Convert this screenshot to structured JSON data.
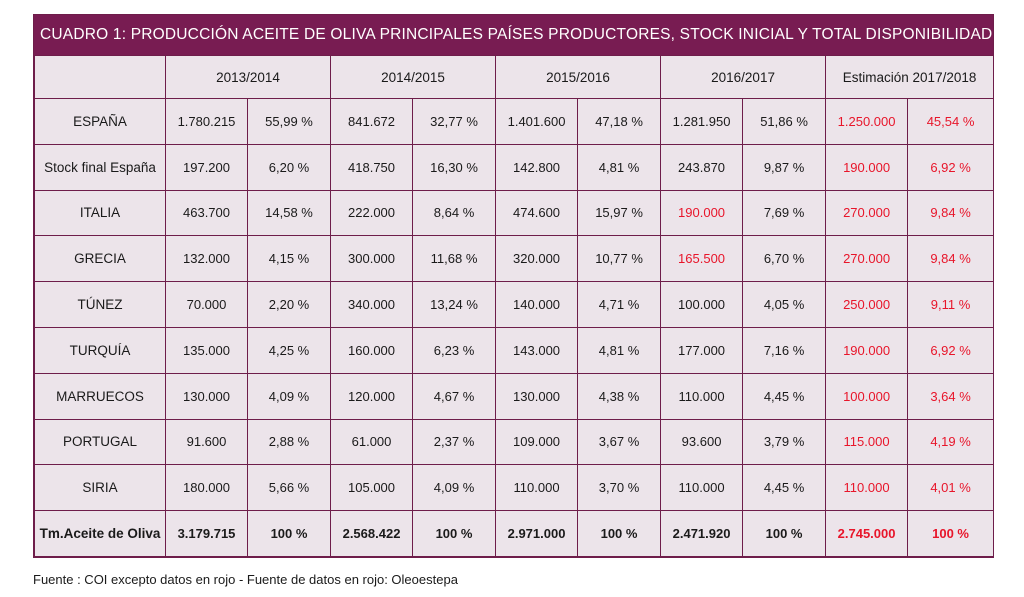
{
  "title": "CUADRO 1: PRODUCCIÓN ACEITE DE OLIVA PRINCIPALES PAÍSES PRODUCTORES, STOCK INICIAL Y TOTAL DISPONIBILIDADES",
  "colors": {
    "header_bg": "#781c52",
    "cell_bg": "#ece4ea",
    "border": "#6e1d4a",
    "highlight_text": "#e8152a"
  },
  "headers": [
    "2013/2014",
    "2014/2015",
    "2015/2016",
    "2016/2017",
    "Estimación 2017/2018"
  ],
  "rows": [
    {
      "label": "ESPAÑA",
      "cells": [
        {
          "v": "1.780.215",
          "red": false
        },
        {
          "v": "55,99 %",
          "red": false
        },
        {
          "v": "841.672",
          "red": false
        },
        {
          "v": "32,77 %",
          "red": false
        },
        {
          "v": "1.401.600",
          "red": false
        },
        {
          "v": "47,18 %",
          "red": false
        },
        {
          "v": "1.281.950",
          "red": false
        },
        {
          "v": "51,86 %",
          "red": false
        },
        {
          "v": "1.250.000",
          "red": true
        },
        {
          "v": "45,54 %",
          "red": true
        }
      ]
    },
    {
      "label": "Stock final España",
      "cells": [
        {
          "v": "197.200",
          "red": false
        },
        {
          "v": "6,20 %",
          "red": false
        },
        {
          "v": "418.750",
          "red": false
        },
        {
          "v": "16,30 %",
          "red": false
        },
        {
          "v": "142.800",
          "red": false
        },
        {
          "v": "4,81 %",
          "red": false
        },
        {
          "v": "243.870",
          "red": false
        },
        {
          "v": "9,87 %",
          "red": false
        },
        {
          "v": "190.000",
          "red": true
        },
        {
          "v": "6,92 %",
          "red": true
        }
      ]
    },
    {
      "label": "ITALIA",
      "cells": [
        {
          "v": "463.700",
          "red": false
        },
        {
          "v": "14,58 %",
          "red": false
        },
        {
          "v": "222.000",
          "red": false
        },
        {
          "v": "8,64 %",
          "red": false
        },
        {
          "v": "474.600",
          "red": false
        },
        {
          "v": "15,97 %",
          "red": false
        },
        {
          "v": "190.000",
          "red": true
        },
        {
          "v": "7,69 %",
          "red": false
        },
        {
          "v": "270.000",
          "red": true
        },
        {
          "v": "9,84 %",
          "red": true
        }
      ]
    },
    {
      "label": "GRECIA",
      "cells": [
        {
          "v": "132.000",
          "red": false
        },
        {
          "v": "4,15 %",
          "red": false
        },
        {
          "v": "300.000",
          "red": false
        },
        {
          "v": "11,68 %",
          "red": false
        },
        {
          "v": "320.000",
          "red": false
        },
        {
          "v": "10,77 %",
          "red": false
        },
        {
          "v": "165.500",
          "red": true
        },
        {
          "v": "6,70 %",
          "red": false
        },
        {
          "v": "270.000",
          "red": true
        },
        {
          "v": "9,84 %",
          "red": true
        }
      ]
    },
    {
      "label": "TÚNEZ",
      "cells": [
        {
          "v": "70.000",
          "red": false
        },
        {
          "v": "2,20 %",
          "red": false
        },
        {
          "v": "340.000",
          "red": false
        },
        {
          "v": "13,24 %",
          "red": false
        },
        {
          "v": "140.000",
          "red": false
        },
        {
          "v": "4,71 %",
          "red": false
        },
        {
          "v": "100.000",
          "red": false
        },
        {
          "v": "4,05 %",
          "red": false
        },
        {
          "v": "250.000",
          "red": true
        },
        {
          "v": "9,11 %",
          "red": true
        }
      ]
    },
    {
      "label": "TURQUÍA",
      "cells": [
        {
          "v": "135.000",
          "red": false
        },
        {
          "v": "4,25 %",
          "red": false
        },
        {
          "v": "160.000",
          "red": false
        },
        {
          "v": "6,23 %",
          "red": false
        },
        {
          "v": "143.000",
          "red": false
        },
        {
          "v": "4,81 %",
          "red": false
        },
        {
          "v": "177.000",
          "red": false
        },
        {
          "v": "7,16 %",
          "red": false
        },
        {
          "v": "190.000",
          "red": true
        },
        {
          "v": "6,92 %",
          "red": true
        }
      ]
    },
    {
      "label": "MARRUECOS",
      "cells": [
        {
          "v": "130.000",
          "red": false
        },
        {
          "v": "4,09 %",
          "red": false
        },
        {
          "v": "120.000",
          "red": false
        },
        {
          "v": "4,67 %",
          "red": false
        },
        {
          "v": "130.000",
          "red": false
        },
        {
          "v": "4,38 %",
          "red": false
        },
        {
          "v": "110.000",
          "red": false
        },
        {
          "v": "4,45 %",
          "red": false
        },
        {
          "v": "100.000",
          "red": true
        },
        {
          "v": "3,64 %",
          "red": true
        }
      ]
    },
    {
      "label": "PORTUGAL",
      "cells": [
        {
          "v": "91.600",
          "red": false
        },
        {
          "v": "2,88 %",
          "red": false
        },
        {
          "v": "61.000",
          "red": false
        },
        {
          "v": "2,37 %",
          "red": false
        },
        {
          "v": "109.000",
          "red": false
        },
        {
          "v": "3,67 %",
          "red": false
        },
        {
          "v": "93.600",
          "red": false
        },
        {
          "v": "3,79 %",
          "red": false
        },
        {
          "v": "115.000",
          "red": true
        },
        {
          "v": "4,19 %",
          "red": true
        }
      ]
    },
    {
      "label": "SIRIA",
      "cells": [
        {
          "v": "180.000",
          "red": false
        },
        {
          "v": "5,66 %",
          "red": false
        },
        {
          "v": "105.000",
          "red": false
        },
        {
          "v": "4,09 %",
          "red": false
        },
        {
          "v": "110.000",
          "red": false
        },
        {
          "v": "3,70 %",
          "red": false
        },
        {
          "v": "110.000",
          "red": false
        },
        {
          "v": "4,45 %",
          "red": false
        },
        {
          "v": "110.000",
          "red": true
        },
        {
          "v": "4,01 %",
          "red": true
        }
      ]
    }
  ],
  "total": {
    "label": "Tm.Aceite de Oliva",
    "cells": [
      {
        "v": "3.179.715",
        "red": false
      },
      {
        "v": "100 %",
        "red": false
      },
      {
        "v": "2.568.422",
        "red": false
      },
      {
        "v": "100 %",
        "red": false
      },
      {
        "v": "2.971.000",
        "red": false
      },
      {
        "v": "100 %",
        "red": false
      },
      {
        "v": "2.471.920",
        "red": false
      },
      {
        "v": "100 %",
        "red": false
      },
      {
        "v": "2.745.000",
        "red": true
      },
      {
        "v": "100 %",
        "red": true
      }
    ]
  },
  "source": "Fuente : COI excepto datos en rojo - Fuente de datos en rojo: Oleoestepa"
}
